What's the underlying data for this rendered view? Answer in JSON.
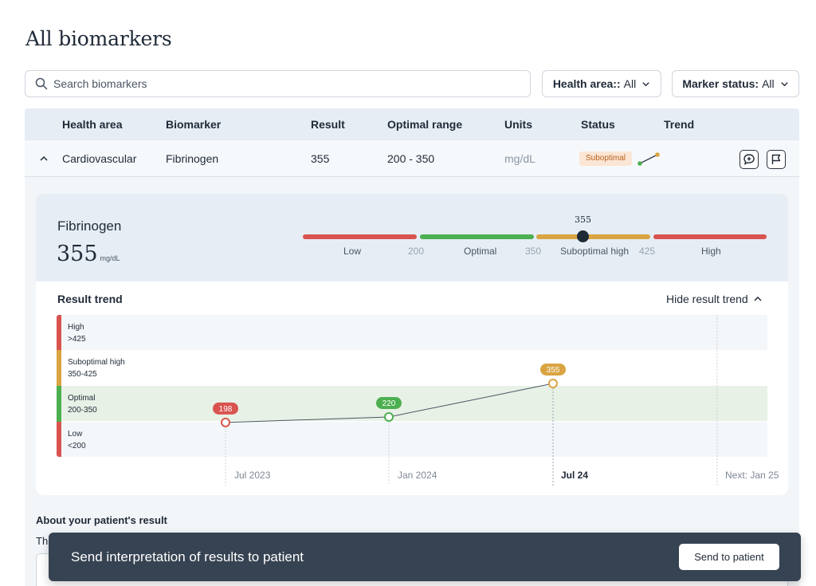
{
  "page": {
    "title": "All biomarkers"
  },
  "search": {
    "placeholder": "Search biomarkers"
  },
  "filters": {
    "health_area": {
      "label": "Health area::",
      "value": "All"
    },
    "marker_status": {
      "label": "Marker status:",
      "value": "All"
    }
  },
  "table": {
    "headers": [
      "Health area",
      "Biomarker",
      "Result",
      "Optimal range",
      "Units",
      "Status",
      "Trend"
    ],
    "row": {
      "health_area": "Cardiovascular",
      "biomarker": "Fibrinogen",
      "result": "355",
      "optimal_range": "200 - 350",
      "units": "mg/dL",
      "status": "Suboptimal"
    }
  },
  "detail": {
    "name": "Fibrinogen",
    "value": "355",
    "unit": "mg/dL",
    "range": {
      "marker_value": "355",
      "labels": [
        "Low",
        "Optimal",
        "Suboptimal high",
        "High"
      ],
      "thresholds": [
        "200",
        "350",
        "425"
      ]
    }
  },
  "trend": {
    "title": "Result trend",
    "hide_label": "Hide result trend",
    "bands": [
      {
        "name": "High",
        "range": ">425",
        "color": "#d9534f"
      },
      {
        "name": "Suboptimal high",
        "range": "350-425",
        "color": "#d9a441"
      },
      {
        "name": "Optimal",
        "range": "200-350",
        "color": "#4caf50"
      },
      {
        "name": "Low",
        "range": "<200",
        "color": "#d9534f"
      }
    ],
    "x_labels": [
      "Jul 2023",
      "Jan 2024",
      "Jul 24",
      "Next: Jan 25"
    ]
  },
  "chart_data": {
    "type": "line",
    "x": [
      "Jul 2023",
      "Jan 2024",
      "Jul 24"
    ],
    "values": [
      198,
      220,
      355
    ],
    "point_labels": [
      "198",
      "220",
      "355"
    ],
    "point_colors": [
      "#d9534f",
      "#4caf50",
      "#d9a441"
    ],
    "bands": [
      {
        "name": "Low",
        "range": "<200"
      },
      {
        "name": "Optimal",
        "range": "200-350"
      },
      {
        "name": "Suboptimal high",
        "range": "350-425"
      },
      {
        "name": "High",
        "range": ">425"
      }
    ],
    "next_label": "Next: Jan 25"
  },
  "about": {
    "title": "About your patient's result",
    "text": "Th"
  },
  "toast": {
    "message": "Send interpretation of results to patient",
    "button": "Send to patient"
  },
  "colors": {
    "low": "#d9534f",
    "optimal": "#4caf50",
    "suboptimal": "#d9a441",
    "accent_dark": "#364352"
  }
}
